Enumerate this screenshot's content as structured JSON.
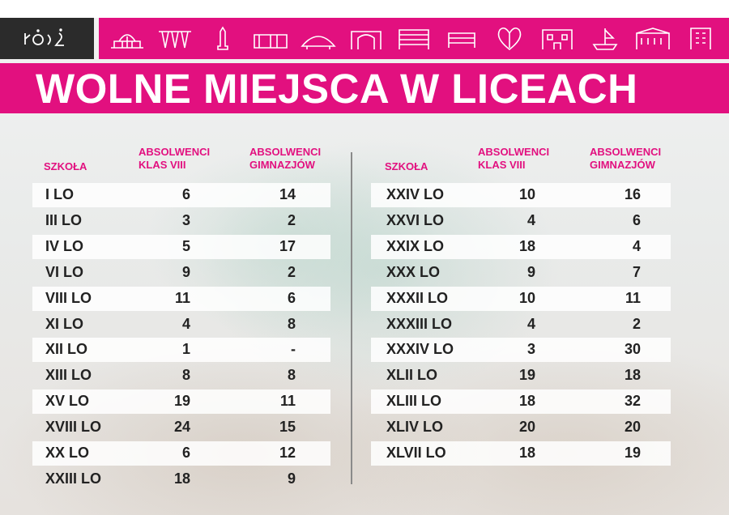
{
  "logo": {
    "text": "ŁÓDŹ"
  },
  "landmark_icons": [
    "railway-station-icon",
    "canopy-icon",
    "monument-icon",
    "factory-icon",
    "arena-icon",
    "gate-icon",
    "building-icon",
    "office-block-icon",
    "heart-icon",
    "palace-icon",
    "ship-icon",
    "villa-icon",
    "tower-icon"
  ],
  "title": "WOLNE MIEJSCA W LICEACH",
  "colors": {
    "accent": "#e2107f",
    "logo_bg": "#2b2b2b",
    "text": "#222222"
  },
  "headers": {
    "school": "SZKOŁA",
    "col1": [
      "ABSOLWENCI",
      "KLAS VIII"
    ],
    "col2": [
      "ABSOLWENCI",
      "GIMNAZJÓW"
    ]
  },
  "left_table": [
    {
      "school": "I LO",
      "klas_viii": "6",
      "gimnazjow": "14"
    },
    {
      "school": "III LO",
      "klas_viii": "3",
      "gimnazjow": "2"
    },
    {
      "school": "IV LO",
      "klas_viii": "5",
      "gimnazjow": "17"
    },
    {
      "school": "VI LO",
      "klas_viii": "9",
      "gimnazjow": "2"
    },
    {
      "school": "VIII LO",
      "klas_viii": "11",
      "gimnazjow": "6"
    },
    {
      "school": "XI LO",
      "klas_viii": "4",
      "gimnazjow": "8"
    },
    {
      "school": "XII LO",
      "klas_viii": "1",
      "gimnazjow": "-"
    },
    {
      "school": "XIII LO",
      "klas_viii": "8",
      "gimnazjow": "8"
    },
    {
      "school": "XV LO",
      "klas_viii": "19",
      "gimnazjow": "11"
    },
    {
      "school": "XVIII LO",
      "klas_viii": "24",
      "gimnazjow": "15"
    },
    {
      "school": "XX LO",
      "klas_viii": "6",
      "gimnazjow": "12"
    },
    {
      "school": "XXIII LO",
      "klas_viii": "18",
      "gimnazjow": "9"
    }
  ],
  "right_table": [
    {
      "school": "XXIV LO",
      "klas_viii": "10",
      "gimnazjow": "16"
    },
    {
      "school": "XXVI LO",
      "klas_viii": "4",
      "gimnazjow": "6"
    },
    {
      "school": "XXIX LO",
      "klas_viii": "18",
      "gimnazjow": "4"
    },
    {
      "school": "XXX LO",
      "klas_viii": "9",
      "gimnazjow": "7"
    },
    {
      "school": "XXXII LO",
      "klas_viii": "10",
      "gimnazjow": "11"
    },
    {
      "school": "XXXIII LO",
      "klas_viii": "4",
      "gimnazjow": "2"
    },
    {
      "school": "XXXIV LO",
      "klas_viii": "3",
      "gimnazjow": "30"
    },
    {
      "school": "XLII LO",
      "klas_viii": "19",
      "gimnazjow": "18"
    },
    {
      "school": "XLIII LO",
      "klas_viii": "18",
      "gimnazjow": "32"
    },
    {
      "school": "XLIV LO",
      "klas_viii": "20",
      "gimnazjow": "20"
    },
    {
      "school": "XLVII LO",
      "klas_viii": "18",
      "gimnazjow": "19"
    }
  ]
}
